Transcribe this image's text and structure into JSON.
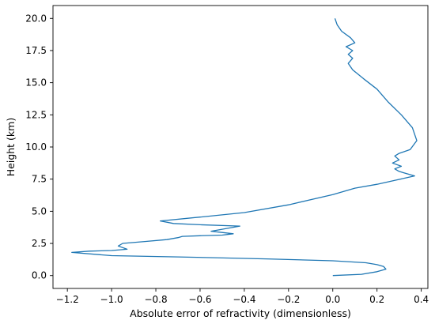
{
  "chart_data": {
    "type": "line",
    "xlabel": "Absolute error of refractivity (dimensionless)",
    "ylabel": "Height (km)",
    "xlim": [
      -1.265,
      0.43
    ],
    "ylim": [
      -1.0,
      21.0
    ],
    "xticks": [
      -1.2,
      -1.0,
      -0.8,
      -0.6,
      -0.4,
      -0.2,
      0.0,
      0.2,
      0.4
    ],
    "xtick_labels": [
      "−1.2",
      "−1.0",
      "−0.8",
      "−0.6",
      "−0.4",
      "−0.2",
      "0.0",
      "0.2",
      "0.4"
    ],
    "yticks": [
      0.0,
      2.5,
      5.0,
      7.5,
      10.0,
      12.5,
      15.0,
      17.5,
      20.0
    ],
    "ytick_labels": [
      "0.0",
      "2.5",
      "5.0",
      "7.5",
      "10.0",
      "12.5",
      "15.0",
      "17.5",
      "20.0"
    ],
    "grid": false,
    "series": [
      {
        "color": "#1f77b4",
        "x": [
          0.0,
          0.13,
          0.2,
          0.24,
          0.23,
          0.2,
          0.15,
          0.0,
          -0.3,
          -0.7,
          -1.0,
          -1.18,
          -1.1,
          -1.0,
          -0.93,
          -0.97,
          -0.95,
          -0.85,
          -0.75,
          -0.7,
          -0.68,
          -0.6,
          -0.5,
          -0.45,
          -0.5,
          -0.55,
          -0.42,
          -0.6,
          -0.72,
          -0.78,
          -0.6,
          -0.4,
          -0.2,
          0.0,
          0.1,
          0.2,
          0.28,
          0.33,
          0.37,
          0.3,
          0.28,
          0.31,
          0.27,
          0.3,
          0.28,
          0.3,
          0.35,
          0.38,
          0.36,
          0.31,
          0.25,
          0.2,
          0.14,
          0.09,
          0.07,
          0.09,
          0.07,
          0.09,
          0.06,
          0.1,
          0.08,
          0.04,
          0.02,
          0.01
        ],
        "y": [
          0.0,
          0.1,
          0.3,
          0.5,
          0.7,
          0.85,
          1.0,
          1.15,
          1.3,
          1.45,
          1.55,
          1.8,
          1.9,
          1.95,
          2.05,
          2.3,
          2.5,
          2.65,
          2.8,
          2.95,
          3.05,
          3.1,
          3.15,
          3.25,
          3.35,
          3.45,
          3.85,
          3.95,
          4.05,
          4.25,
          4.55,
          4.9,
          5.5,
          6.3,
          6.8,
          7.1,
          7.4,
          7.6,
          7.75,
          8.1,
          8.3,
          8.5,
          8.75,
          9.0,
          9.3,
          9.5,
          9.8,
          10.5,
          11.5,
          12.5,
          13.5,
          14.5,
          15.3,
          16.0,
          16.5,
          16.9,
          17.2,
          17.5,
          17.8,
          18.1,
          18.5,
          19.0,
          19.5,
          20.0
        ]
      }
    ]
  }
}
